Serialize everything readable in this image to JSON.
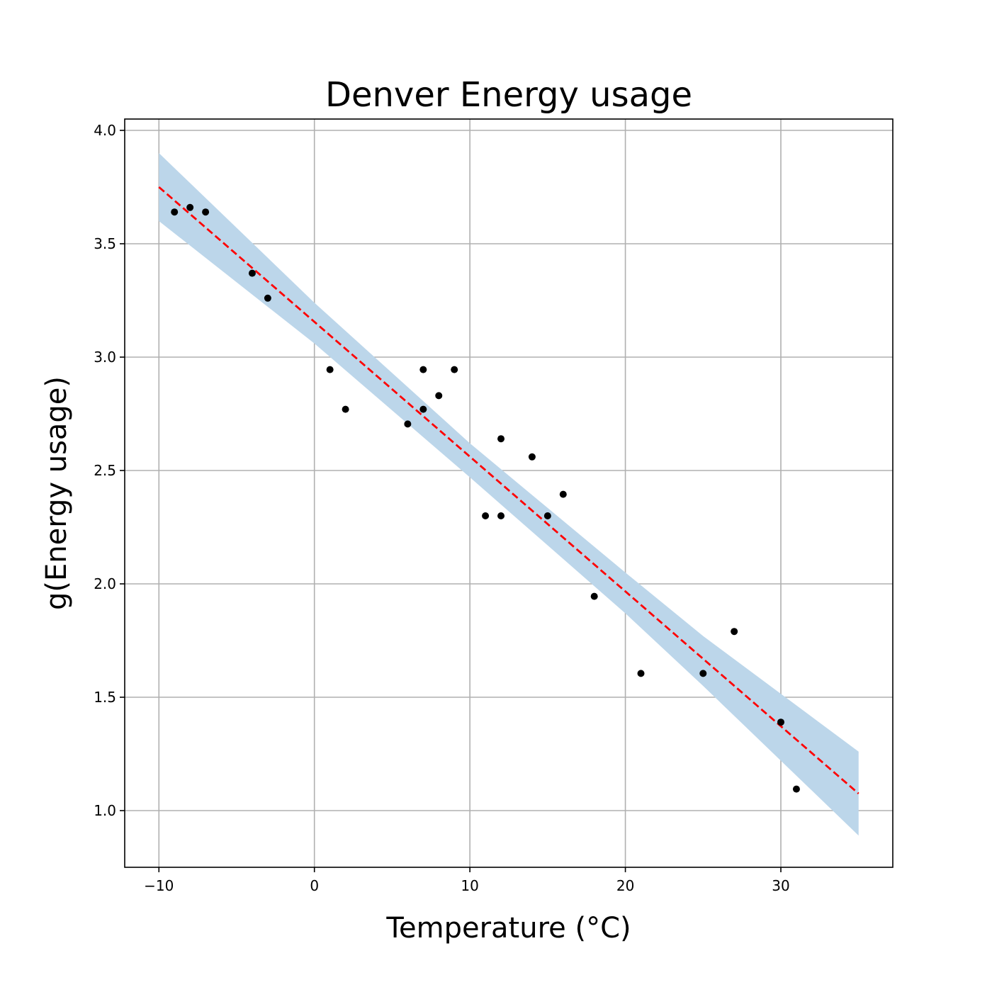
{
  "chart_data": {
    "type": "scatter",
    "title": "Denver Energy usage",
    "xlabel": "Temperature (°C)",
    "ylabel": "g(Energy usage)",
    "xlim": [
      -12.2,
      37.2
    ],
    "ylim": [
      0.75,
      4.05
    ],
    "xticks": [
      -10,
      0,
      10,
      20,
      30
    ],
    "xtick_labels": [
      "−10",
      "0",
      "10",
      "20",
      "30"
    ],
    "yticks": [
      1.0,
      1.5,
      2.0,
      2.5,
      3.0,
      3.5,
      4.0
    ],
    "ytick_labels": [
      "1.0",
      "1.5",
      "2.0",
      "2.5",
      "3.0",
      "3.5",
      "4.0"
    ],
    "grid": true,
    "points": {
      "x": [
        -9,
        -8,
        -7,
        -4,
        -3,
        1,
        2,
        6,
        7,
        7,
        8,
        9,
        11,
        12,
        12,
        14,
        15,
        16,
        18,
        21,
        25,
        27,
        30,
        31
      ],
      "y": [
        3.64,
        3.66,
        3.64,
        3.37,
        3.26,
        2.945,
        2.77,
        2.705,
        2.945,
        2.77,
        2.83,
        2.945,
        2.3,
        2.64,
        2.3,
        2.56,
        2.3,
        2.395,
        1.945,
        1.605,
        1.605,
        1.79,
        1.39,
        1.095
      ],
      "color": "#000000"
    },
    "fit_line": {
      "x": [
        -10,
        35
      ],
      "y": [
        3.75,
        1.075
      ],
      "color": "#ff0000",
      "style": "dashed"
    },
    "confidence_band": {
      "x": [
        -10,
        0,
        10,
        20,
        25,
        35
      ],
      "lower": [
        3.6,
        3.06,
        2.47,
        1.87,
        1.55,
        0.89
      ],
      "upper": [
        3.9,
        3.24,
        2.62,
        2.05,
        1.77,
        1.26
      ],
      "color": "#bcd6ea"
    }
  }
}
